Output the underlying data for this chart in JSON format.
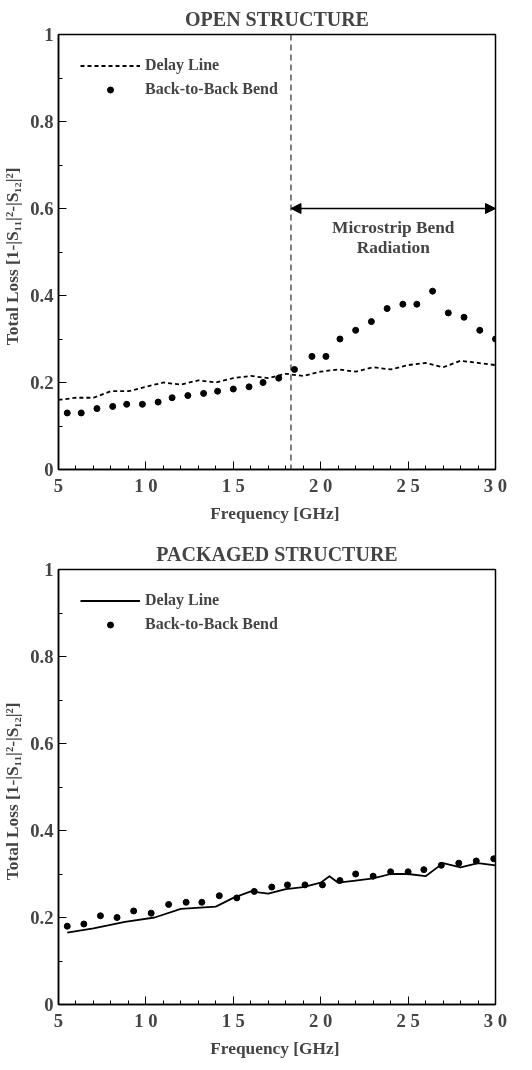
{
  "chart_data": [
    {
      "type": "scatter",
      "title": "OPEN STRUCTURE",
      "xlabel": "Frequency  [GHz]",
      "ylabel": "Total  Loss  [1-|S₁₁|²-|S₁₂|²]",
      "xlim": [
        5,
        30
      ],
      "xticks": [
        5,
        10,
        15,
        20,
        25,
        30
      ],
      "ylim": [
        0,
        1
      ],
      "yticks": [
        0,
        0.2,
        0.4,
        0.6,
        0.8,
        1
      ],
      "legend": "top left",
      "ref_lines": [
        {
          "axis": "x",
          "value": 18.3,
          "label": "Microstrip Bend Radiation",
          "line_style": "dashed"
        }
      ],
      "series": [
        {
          "name": "Delay Line",
          "type": "line",
          "line_style": "dashed",
          "color": "#000000",
          "x": [
            5,
            6,
            7,
            8,
            9,
            10,
            11,
            12,
            13,
            14,
            15,
            16,
            17,
            18,
            19,
            20,
            21,
            22,
            23,
            24,
            25,
            26,
            27,
            28,
            29,
            30
          ],
          "values": [
            0.16,
            0.165,
            0.165,
            0.18,
            0.18,
            0.19,
            0.2,
            0.195,
            0.205,
            0.2,
            0.21,
            0.215,
            0.21,
            0.22,
            0.215,
            0.225,
            0.23,
            0.225,
            0.235,
            0.23,
            0.24,
            0.245,
            0.235,
            0.25,
            0.245,
            0.24
          ]
        },
        {
          "name": "Back-to-Back Bend",
          "marker": "circle",
          "color": "#000000",
          "x": [
            5.5,
            6.3,
            7.2,
            8.1,
            8.9,
            9.8,
            10.7,
            11.5,
            12.4,
            13.3,
            14.1,
            15.0,
            15.9,
            16.7,
            17.6,
            18.5,
            19.5,
            20.3,
            21.1,
            22.0,
            22.9,
            23.8,
            24.7,
            25.5,
            26.4,
            27.3,
            28.2,
            29.1,
            30.0
          ],
          "values": [
            0.13,
            0.13,
            0.14,
            0.145,
            0.15,
            0.15,
            0.155,
            0.165,
            0.17,
            0.175,
            0.18,
            0.185,
            0.19,
            0.2,
            0.21,
            0.23,
            0.26,
            0.26,
            0.3,
            0.32,
            0.34,
            0.37,
            0.38,
            0.38,
            0.41,
            0.36,
            0.35,
            0.32,
            0.3
          ]
        }
      ]
    },
    {
      "type": "scatter",
      "title": "PACKAGED STRUCTURE",
      "xlabel": "Frequency  [GHz]",
      "ylabel": "Total  Loss  [1-|S₁₁|²-|S₁₂|²]",
      "xlim": [
        5,
        30
      ],
      "xticks": [
        5,
        10,
        15,
        20,
        25,
        30
      ],
      "ylim": [
        0,
        1
      ],
      "yticks": [
        0,
        0.2,
        0.4,
        0.6,
        0.8,
        1
      ],
      "legend": "top left",
      "series": [
        {
          "name": "Delay Line",
          "type": "line",
          "line_style": "solid",
          "color": "#000000",
          "x": [
            5.5,
            7,
            8.8,
            10.5,
            12,
            14,
            15,
            16,
            17,
            18,
            19,
            20,
            20.5,
            21,
            22,
            23,
            24,
            25,
            26,
            27,
            28,
            29,
            30
          ],
          "values": [
            0.165,
            0.175,
            0.19,
            0.2,
            0.22,
            0.225,
            0.245,
            0.26,
            0.255,
            0.265,
            0.27,
            0.28,
            0.295,
            0.28,
            0.285,
            0.29,
            0.3,
            0.3,
            0.295,
            0.325,
            0.315,
            0.325,
            0.32
          ]
        },
        {
          "name": "Back-to-Back Bend",
          "marker": "circle",
          "color": "#000000",
          "x": [
            5.5,
            6.45,
            7.4,
            8.35,
            9.3,
            10.3,
            11.3,
            12.3,
            13.2,
            14.2,
            15.2,
            16.2,
            17.2,
            18.1,
            19.1,
            20.1,
            21.1,
            22.0,
            23.0,
            24.0,
            25.0,
            25.9,
            26.9,
            27.9,
            28.9,
            29.9
          ],
          "values": [
            0.18,
            0.185,
            0.204,
            0.2,
            0.215,
            0.21,
            0.23,
            0.235,
            0.235,
            0.25,
            0.245,
            0.26,
            0.27,
            0.275,
            0.275,
            0.275,
            0.285,
            0.3,
            0.295,
            0.305,
            0.305,
            0.31,
            0.32,
            0.325,
            0.33,
            0.335
          ]
        }
      ]
    }
  ]
}
